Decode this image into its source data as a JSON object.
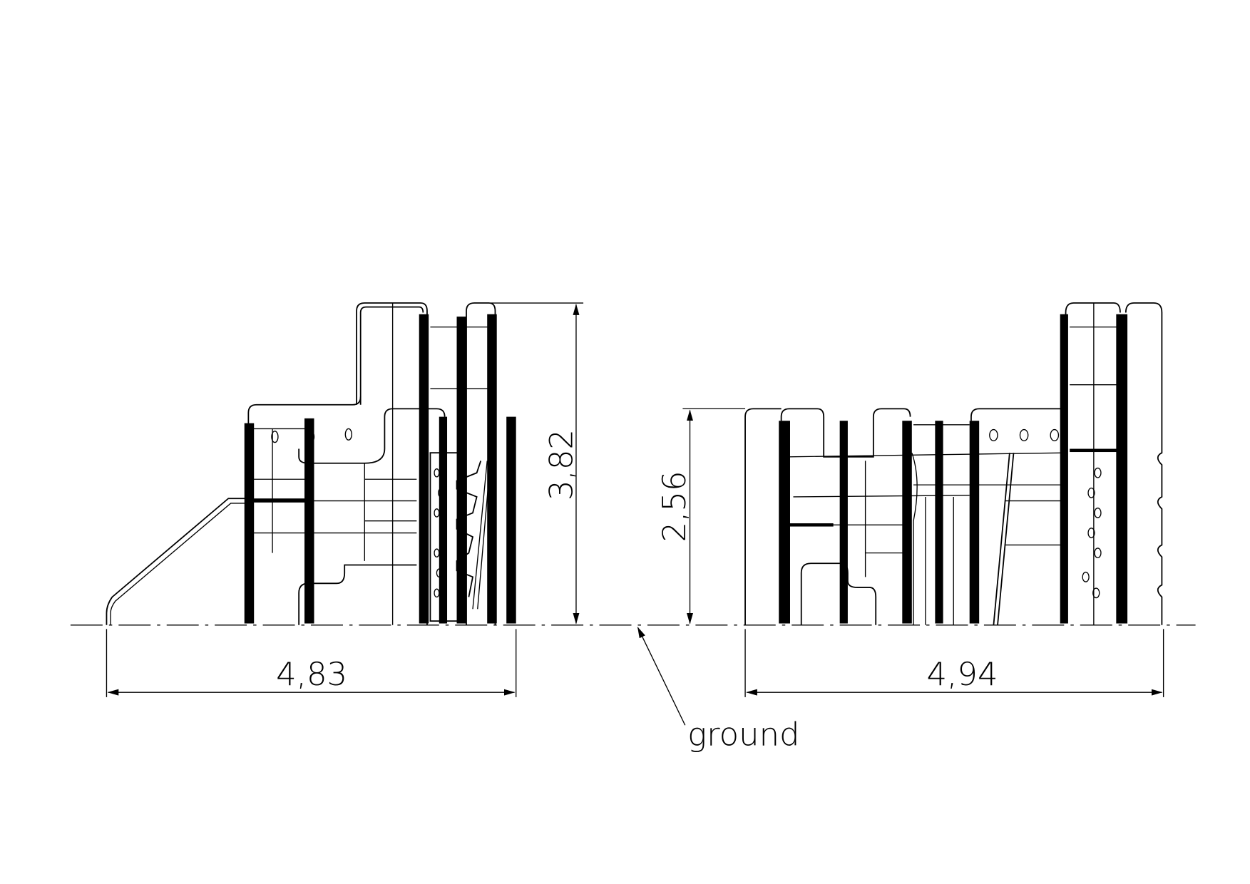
{
  "drawing": {
    "dimensions": {
      "left_width": "4,83",
      "left_height": "3,82",
      "right_height": "2,56",
      "right_width": "4,94"
    },
    "ground_label": "ground",
    "colors": {
      "line": "#000000",
      "background": "#ffffff"
    }
  }
}
